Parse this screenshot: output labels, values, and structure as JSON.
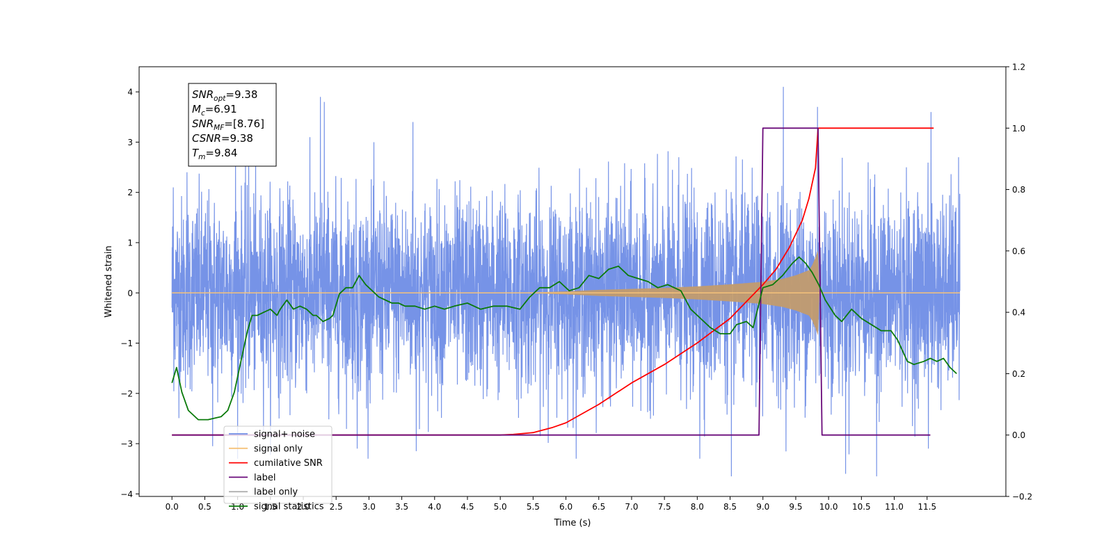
{
  "chart_data": {
    "type": "line",
    "xlabel": "Time (s)",
    "ylabel": "Whitened strain",
    "xlim": [
      -0.5,
      12.7
    ],
    "ylim_left": [
      -4.05,
      4.5
    ],
    "ylim_right": [
      -0.2,
      1.2
    ],
    "x_ticks": [
      0.0,
      0.5,
      1.0,
      1.5,
      2.0,
      2.5,
      3.0,
      3.5,
      4.0,
      4.5,
      5.0,
      5.5,
      6.0,
      6.5,
      7.0,
      7.5,
      8.0,
      8.5,
      9.0,
      9.5,
      10.0,
      10.5,
      11.0,
      11.5
    ],
    "x_tick_labels": [
      "0.0",
      "0.5",
      "1.0",
      "1.5",
      "2.0",
      "2.5",
      "3.0",
      "3.5",
      "4.0",
      "4.5",
      "5.0",
      "5.5",
      "6.0",
      "6.5",
      "7.0",
      "7.5",
      "8.0",
      "8.5",
      "9.0",
      "9.5",
      "10.0",
      "10.5",
      "11.0",
      "11.5"
    ],
    "y_ticks_left": [
      -4,
      -3,
      -2,
      -1,
      0,
      1,
      2,
      3,
      4
    ],
    "y_tick_labels_left": [
      "−4",
      "−3",
      "−2",
      "−1",
      "0",
      "1",
      "2",
      "3",
      "4"
    ],
    "y_ticks_right": [
      -0.2,
      0.0,
      0.2,
      0.4,
      0.6,
      0.8,
      1.0,
      1.2
    ],
    "y_tick_labels_right": [
      "−0.2",
      "0.0",
      "0.2",
      "0.4",
      "0.6",
      "0.8",
      "1.0",
      "1.2"
    ],
    "annotation_lines": [
      {
        "var": "SNR",
        "sub": "opt",
        "value": "=9.38"
      },
      {
        "var": "M",
        "sub": "c",
        "value": "=6.91"
      },
      {
        "var": "SNR",
        "sub": "MF",
        "value": "=[8.76]"
      },
      {
        "var": "CSNR",
        "sub": "",
        "value": "=9.38"
      },
      {
        "var": "T",
        "sub": "m",
        "value": "=9.84"
      }
    ],
    "legend": {
      "location": "lower-left",
      "entries": [
        {
          "label": "signal+ noise",
          "color": "#6f8de6"
        },
        {
          "label": "signal only",
          "color": "#f5c27a"
        },
        {
          "label": "cumilative SNR",
          "color": "#ff0000"
        },
        {
          "label": "label",
          "color": "#6a0a7a"
        },
        {
          "label": "label only",
          "color": "#b0b0b0"
        },
        {
          "label": "signal statistics",
          "color": "#0a7a0a"
        }
      ]
    },
    "series": [
      {
        "name": "signal+ noise",
        "axis": "left",
        "color": "#6f8de6",
        "kind": "noise",
        "x_range": [
          0.0,
          12.0
        ],
        "std": 0.95,
        "envelope_points": [
          [
            0.02,
            2.1
          ],
          [
            0.23,
            2.4
          ],
          [
            0.97,
            2.6
          ],
          [
            1.17,
            2.7
          ],
          [
            2.26,
            3.9
          ],
          [
            2.32,
            3.8
          ],
          [
            3.67,
            3.4
          ],
          [
            7.72,
            2.7
          ],
          [
            9.31,
            4.1
          ],
          [
            9.83,
            3.7
          ],
          [
            11.56,
            3.6
          ],
          [
            11.98,
            2.7
          ],
          [
            0.62,
            -3.05
          ],
          [
            2.82,
            -3.1
          ],
          [
            3.72,
            -3.15
          ],
          [
            8.52,
            -3.65
          ],
          [
            8.04,
            -3.3
          ],
          [
            10.26,
            -3.6
          ],
          [
            10.73,
            -3.65
          ],
          [
            11.52,
            -3.1
          ]
        ]
      },
      {
        "name": "signal only",
        "axis": "left",
        "color": "#f5c27a",
        "kind": "chirp_envelope",
        "x": [
          0.0,
          4.0,
          5.5,
          6.0,
          6.5,
          7.0,
          7.5,
          8.0,
          8.5,
          9.0,
          9.3,
          9.5,
          9.6,
          9.7,
          9.75,
          9.8,
          9.84,
          9.86,
          12.0
        ],
        "amplitude": [
          0.0,
          0.0,
          0.01,
          0.03,
          0.06,
          0.08,
          0.1,
          0.13,
          0.17,
          0.22,
          0.28,
          0.35,
          0.4,
          0.45,
          0.55,
          0.7,
          0.85,
          0.0,
          0.0
        ]
      },
      {
        "name": "cumilative SNR",
        "axis": "right",
        "color": "#ff0000",
        "x": [
          0.0,
          5.0,
          5.2,
          5.5,
          5.8,
          6.0,
          6.5,
          7.0,
          7.5,
          8.0,
          8.5,
          9.0,
          9.2,
          9.4,
          9.6,
          9.7,
          9.8,
          9.84,
          11.6
        ],
        "values": [
          0.0,
          0.0,
          0.002,
          0.008,
          0.025,
          0.04,
          0.1,
          0.17,
          0.23,
          0.3,
          0.38,
          0.49,
          0.54,
          0.61,
          0.7,
          0.77,
          0.87,
          1.0,
          1.0
        ]
      },
      {
        "name": "label",
        "axis": "right",
        "color": "#6a0a7a",
        "x": [
          0.0,
          8.94,
          9.0,
          9.84,
          9.9,
          11.55
        ],
        "values": [
          0.0,
          0.0,
          1.0,
          1.0,
          0.0,
          0.0
        ]
      },
      {
        "name": "signal statistics",
        "axis": "right",
        "color": "#0a7a0a",
        "x": [
          0.0,
          0.07,
          0.15,
          0.25,
          0.4,
          0.55,
          0.75,
          0.85,
          0.95,
          1.05,
          1.15,
          1.22,
          1.3,
          1.4,
          1.5,
          1.6,
          1.65,
          1.75,
          1.85,
          1.95,
          2.05,
          2.15,
          2.2,
          2.3,
          2.4,
          2.45,
          2.55,
          2.65,
          2.75,
          2.85,
          2.95,
          3.05,
          3.15,
          3.25,
          3.35,
          3.45,
          3.55,
          3.7,
          3.85,
          4.0,
          4.15,
          4.3,
          4.5,
          4.7,
          4.9,
          5.1,
          5.3,
          5.45,
          5.6,
          5.75,
          5.9,
          6.05,
          6.2,
          6.35,
          6.5,
          6.65,
          6.8,
          6.95,
          7.1,
          7.25,
          7.4,
          7.55,
          7.65,
          7.75,
          7.9,
          8.05,
          8.2,
          8.35,
          8.5,
          8.6,
          8.75,
          8.85,
          9.0,
          9.15,
          9.3,
          9.45,
          9.55,
          9.65,
          9.75,
          9.85,
          9.95,
          10.1,
          10.2,
          10.35,
          10.5,
          10.65,
          10.8,
          10.95,
          11.05,
          11.2,
          11.3,
          11.45,
          11.55,
          11.65,
          11.75,
          11.85,
          11.95
        ],
        "values": [
          0.17,
          0.22,
          0.14,
          0.08,
          0.05,
          0.05,
          0.06,
          0.08,
          0.14,
          0.24,
          0.34,
          0.39,
          0.39,
          0.4,
          0.41,
          0.39,
          0.41,
          0.44,
          0.41,
          0.42,
          0.41,
          0.39,
          0.39,
          0.37,
          0.38,
          0.39,
          0.46,
          0.48,
          0.48,
          0.52,
          0.49,
          0.47,
          0.45,
          0.44,
          0.43,
          0.43,
          0.42,
          0.42,
          0.41,
          0.42,
          0.41,
          0.42,
          0.43,
          0.41,
          0.42,
          0.42,
          0.41,
          0.45,
          0.48,
          0.48,
          0.5,
          0.47,
          0.48,
          0.52,
          0.51,
          0.54,
          0.55,
          0.52,
          0.51,
          0.5,
          0.48,
          0.49,
          0.48,
          0.47,
          0.41,
          0.38,
          0.35,
          0.33,
          0.33,
          0.36,
          0.37,
          0.35,
          0.48,
          0.49,
          0.52,
          0.56,
          0.58,
          0.56,
          0.53,
          0.49,
          0.44,
          0.39,
          0.37,
          0.41,
          0.38,
          0.36,
          0.34,
          0.34,
          0.31,
          0.24,
          0.23,
          0.24,
          0.25,
          0.24,
          0.25,
          0.22,
          0.2
        ]
      }
    ]
  }
}
